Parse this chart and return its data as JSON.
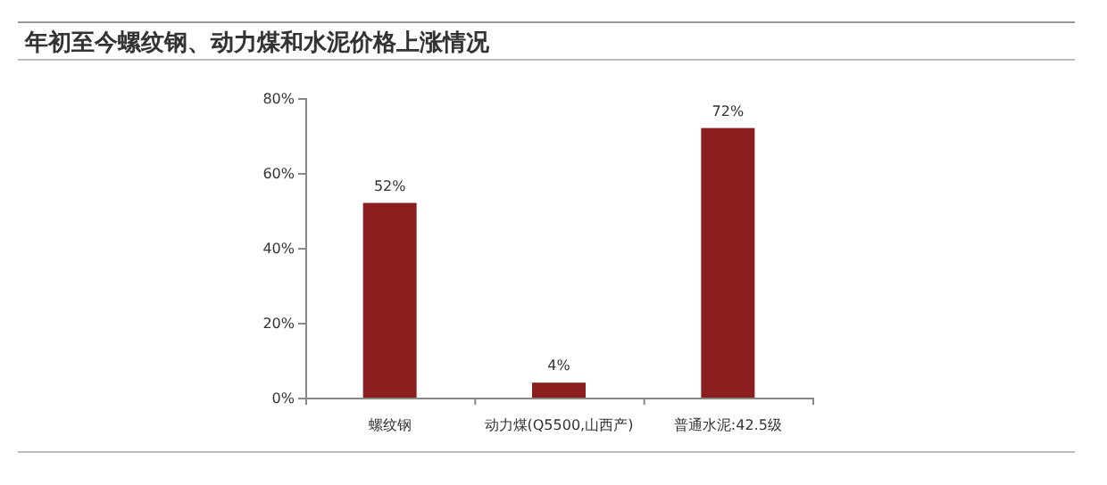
{
  "chart_data": {
    "type": "bar",
    "title": "年初至今螺纹钢、动力煤和水泥价格上涨情况",
    "categories": [
      "螺纹钢",
      "动力煤(Q5500,山西产)",
      "普通水泥:42.5级"
    ],
    "values": [
      52,
      4,
      72
    ],
    "value_labels": [
      "52%",
      "4%",
      "72%"
    ],
    "color": "#8b1f1f",
    "ylim": [
      0,
      80
    ],
    "yticks": [
      {
        "value": 0,
        "label": "0%"
      },
      {
        "value": 20,
        "label": "20%"
      },
      {
        "value": 40,
        "label": "40%"
      },
      {
        "value": 60,
        "label": "60%"
      },
      {
        "value": 80,
        "label": "80%"
      }
    ],
    "grid": false
  }
}
